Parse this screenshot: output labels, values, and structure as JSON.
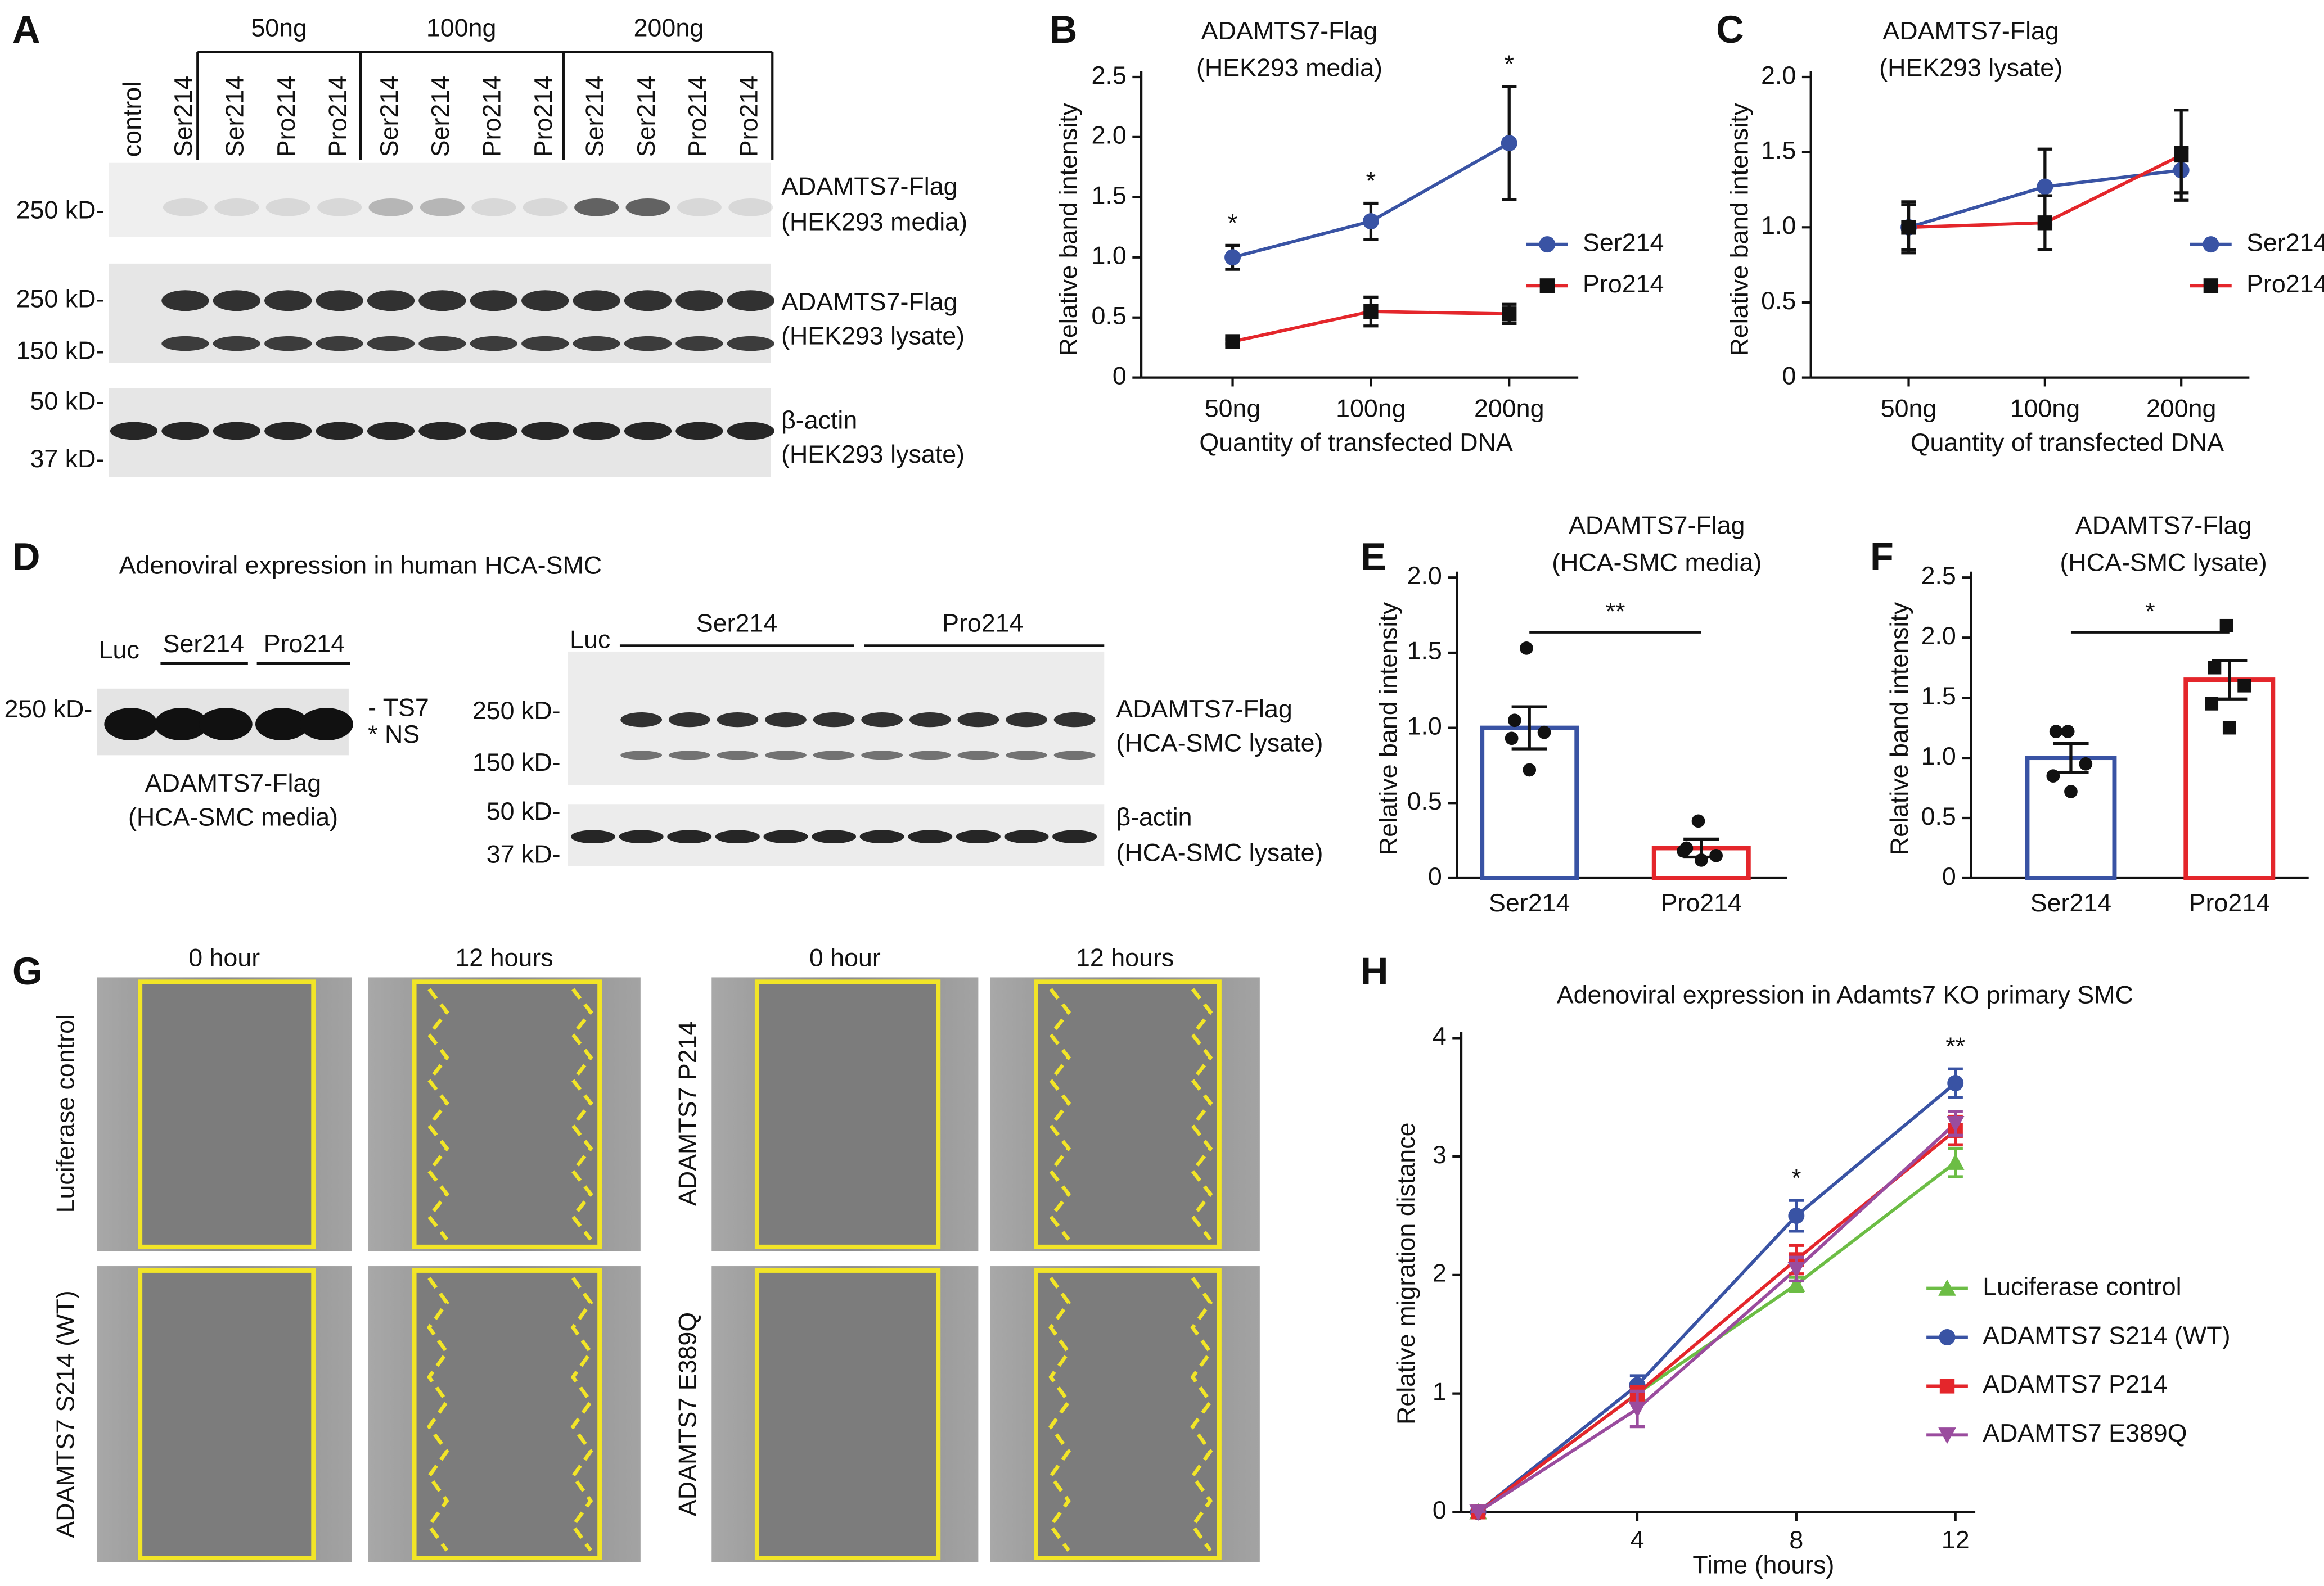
{
  "panel_labels": [
    "A",
    "B",
    "C",
    "D",
    "E",
    "F",
    "G",
    "H"
  ],
  "blot_A": {
    "doses": [
      "50ng",
      "100ng",
      "200ng"
    ],
    "lanes": [
      "control",
      "Ser214",
      "Ser214",
      "Pro214",
      "Pro214",
      "Ser214",
      "Ser214",
      "Pro214",
      "Pro214",
      "Ser214",
      "Ser214",
      "Pro214",
      "Pro214"
    ],
    "blots": [
      {
        "markers": [
          "250 kD-"
        ],
        "labels": [
          "ADAMTS7-Flag",
          "(HEK293 media)"
        ]
      },
      {
        "markers": [
          "250 kD-",
          "150 kD-"
        ],
        "labels": [
          "ADAMTS7-Flag",
          "(HEK293 lysate)"
        ]
      },
      {
        "markers": [
          "50 kD-",
          "37 kD-"
        ],
        "labels": [
          "β-actin",
          "(HEK293 lysate)"
        ]
      }
    ]
  },
  "blot_D": {
    "title": "Adenoviral expression in human HCA-SMC",
    "media": {
      "lanes": [
        "Luc",
        "Ser214",
        "Pro214"
      ],
      "markers": [
        "250 kD-"
      ],
      "bands": [
        "- TS7",
        "* NS"
      ],
      "caption": [
        "ADAMTS7-Flag",
        "(HCA-SMC media)"
      ]
    },
    "lysate": {
      "lanes": [
        "Luc",
        "Ser214",
        "Pro214"
      ],
      "markers": [
        "250 kD-",
        "150 kD-",
        "50 kD-",
        "37 kD-"
      ],
      "labels": [
        "ADAMTS7-Flag",
        "(HCA-SMC lysate)",
        "β-actin",
        "(HCA-SMC lysate)"
      ]
    }
  },
  "migration_G": {
    "timepoints": [
      "0 hour",
      "12 hours"
    ],
    "conditions": [
      "Luciferase control",
      "ADAMTS7 S214 (WT)",
      "ADAMTS7 P214",
      "ADAMTS7 E389Q"
    ]
  },
  "chart_data": [
    {
      "type": "line",
      "title": [
        "ADAMTS7-Flag",
        "(HEK293 media)"
      ],
      "xlabel": "Quantity of transfected DNA",
      "ylabel": "Relative band intensity",
      "categories": [
        "50ng",
        "100ng",
        "200ng"
      ],
      "ylim": [
        0,
        2.5
      ],
      "yticks": [
        0,
        0.5,
        {
          "value": 1,
          "label": "1.0"
        },
        1.5,
        {
          "value": 2,
          "label": "2.0"
        },
        2.5
      ],
      "legend": "right",
      "series": [
        {
          "name": "Ser214",
          "color": "#3953a4",
          "marker": "circle",
          "values": [
            1.0,
            1.3,
            1.95
          ],
          "errors": [
            0.1,
            0.15,
            0.47
          ]
        },
        {
          "name": "Pro214",
          "color": "#e4262b",
          "marker": "square",
          "values": [
            0.3,
            0.55,
            0.53
          ],
          "errors": [
            0.02,
            0.12,
            0.08
          ]
        }
      ],
      "annotations": [
        "*",
        "*",
        "*"
      ]
    },
    {
      "type": "line",
      "title": [
        "ADAMTS7-Flag",
        "(HEK293 lysate)"
      ],
      "xlabel": "Quantity of transfected DNA",
      "ylabel": "Relative band intensity",
      "categories": [
        "50ng",
        "100ng",
        "200ng"
      ],
      "ylim": [
        0,
        2
      ],
      "yticks": [
        0,
        0.5,
        {
          "value": 1,
          "label": "1.0"
        },
        1.5,
        {
          "value": 2,
          "label": "2.0"
        }
      ],
      "legend": "right",
      "series": [
        {
          "name": "Ser214",
          "color": "#3953a4",
          "marker": "circle",
          "values": [
            1.0,
            1.27,
            1.38
          ],
          "errors": [
            0.17,
            0.25,
            0.15
          ]
        },
        {
          "name": "Pro214",
          "color": "#e4262b",
          "marker": "square",
          "values": [
            1.0,
            1.03,
            1.48
          ],
          "errors": [
            0.15,
            0.18,
            0.3
          ]
        }
      ]
    },
    {
      "type": "bar",
      "title": [
        "ADAMTS7-Flag",
        "(HCA-SMC media)"
      ],
      "ylabel": "Relative band intensity",
      "categories": [
        "Ser214",
        "Pro214"
      ],
      "colors": [
        "#3953a4",
        "#e4262b"
      ],
      "values": [
        1.0,
        0.2
      ],
      "errors": [
        0.14,
        0.06
      ],
      "points": [
        [
          1.53,
          1.05,
          0.97,
          0.93,
          0.72
        ],
        [
          0.38,
          0.2,
          0.15,
          0.18,
          0.12
        ]
      ],
      "ylim": [
        0,
        2
      ],
      "yticks": [
        0,
        0.5,
        {
          "value": 1,
          "label": "1.0"
        },
        1.5,
        {
          "value": 2,
          "label": "2.0"
        }
      ],
      "annotation": "**"
    },
    {
      "type": "bar",
      "title": [
        "ADAMTS7-Flag",
        "(HCA-SMC lysate)"
      ],
      "ylabel": "Relative band intensity",
      "categories": [
        "Ser214",
        "Pro214"
      ],
      "colors": [
        "#3953a4",
        "#e4262b"
      ],
      "values": [
        1.0,
        1.65
      ],
      "errors": [
        0.12,
        0.16
      ],
      "points": [
        [
          1.22,
          1.22,
          0.95,
          0.85,
          0.72
        ],
        [
          2.1,
          1.75,
          1.6,
          1.45,
          1.25
        ]
      ],
      "ylim": [
        0,
        2.5
      ],
      "yticks": [
        0,
        0.5,
        {
          "value": 1,
          "label": "1.0"
        },
        1.5,
        {
          "value": 2,
          "label": "2.0"
        },
        2.5
      ],
      "annotation": "*"
    },
    {
      "type": "line",
      "title": [
        "Adenoviral expression in Adamts7 KO primary SMC"
      ],
      "xlabel": "Time (hours)",
      "ylabel": "Relative migration distance",
      "x": [
        0,
        4,
        8,
        12
      ],
      "xlim": [
        -0.5,
        12.5
      ],
      "xticks": [
        4,
        8,
        12
      ],
      "ylim": [
        0,
        4
      ],
      "yticks": [
        0,
        1,
        2,
        3,
        4
      ],
      "legend": "right",
      "series": [
        {
          "name": "Luciferase control",
          "color": "#6cbd45",
          "marker": "triangle-up",
          "values": [
            0,
            1.0,
            1.92,
            2.95
          ],
          "errors": [
            0,
            0.07,
            0.06,
            0.12
          ]
        },
        {
          "name": "ADAMTS7 S214 (WT)",
          "color": "#3953a4",
          "marker": "circle",
          "values": [
            0,
            1.07,
            2.5,
            3.62
          ],
          "errors": [
            0,
            0.08,
            0.13,
            0.12
          ]
        },
        {
          "name": "ADAMTS7 P214",
          "color": "#e4262b",
          "marker": "square",
          "values": [
            0,
            1.0,
            2.13,
            3.22
          ],
          "errors": [
            0,
            0.06,
            0.12,
            0.12
          ]
        },
        {
          "name": "ADAMTS7 E389Q",
          "color": "#9a4c9e",
          "marker": "triangle-down",
          "values": [
            0,
            0.87,
            2.05,
            3.28
          ],
          "errors": [
            0,
            0.15,
            0.1,
            0.1
          ]
        }
      ],
      "annotations": [
        {
          "x": 8,
          "text": "*"
        },
        {
          "x": 12,
          "text": "**"
        }
      ]
    }
  ]
}
